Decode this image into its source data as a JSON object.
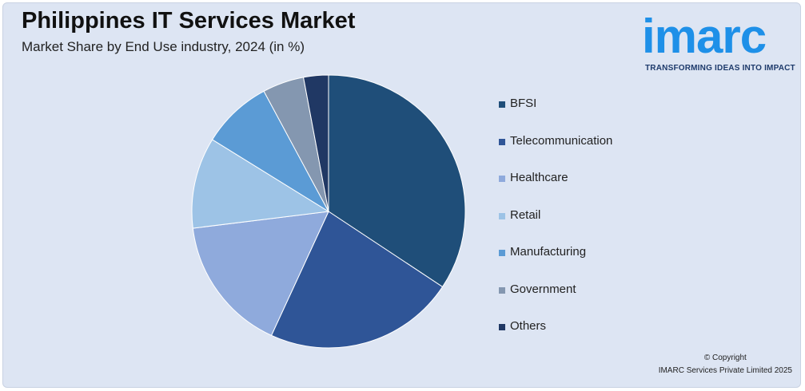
{
  "header": {
    "title": "Philippines IT Services Market",
    "subtitle": "Market Share by End Use industry, 2024 (in %)"
  },
  "logo": {
    "word": "imarc",
    "tagline": "TRANSFORMING IDEAS INTO IMPACT",
    "color": "#1e90e8",
    "tagline_color": "#1d3a6b"
  },
  "chart_data": {
    "type": "pie",
    "title": "",
    "categories": [
      "BFSI",
      "Telecommunication",
      "Healthcare",
      "Retail",
      "Manufacturing",
      "Government",
      "Others"
    ],
    "values": [
      35,
      23,
      16.5,
      11,
      8.5,
      5,
      3
    ],
    "colors": [
      "#1f4e79",
      "#2f5597",
      "#8faadc",
      "#9dc3e6",
      "#5b9bd5",
      "#8497b0",
      "#203864"
    ],
    "start_angle_deg": 0,
    "direction": "clockwise",
    "legend_position": "right"
  },
  "footer": {
    "copyright_line1": "© Copyright",
    "copyright_line2": "IMARC Services Private Limited 2025"
  }
}
